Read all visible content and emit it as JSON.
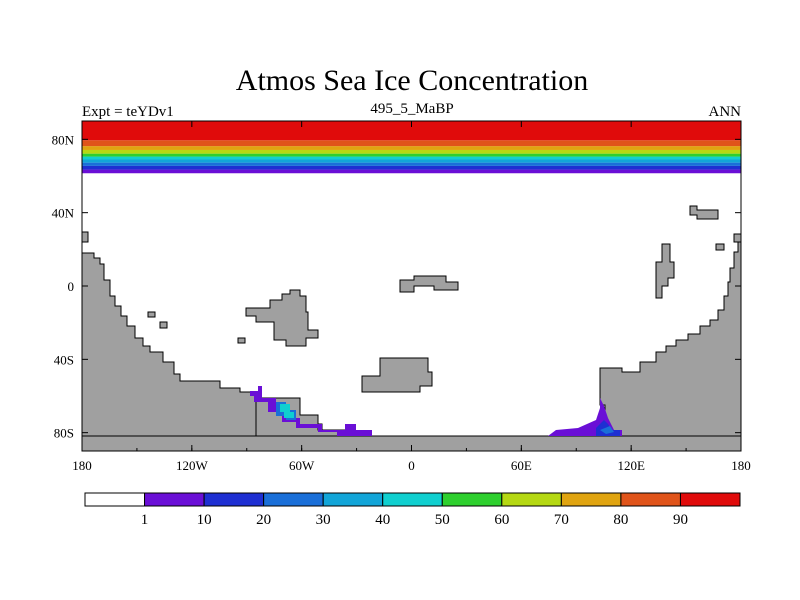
{
  "title": "Atmos Sea Ice Concentration",
  "subtitle": "495_5_MaBP",
  "left_label": "Expt = teYDv1",
  "right_label": "ANN",
  "colors": {
    "land": "#a0a0a0",
    "ocean": "#ffffff",
    "coast": "#000000",
    "bands": [
      "#ffffff",
      "#6a0fd6",
      "#1e2fd2",
      "#1a6fd8",
      "#12a5d8",
      "#10cfcf",
      "#2ecf2e",
      "#b5d813",
      "#e0a410",
      "#e0541a",
      "#e00b0b"
    ]
  },
  "chart_data": {
    "type": "heatmap",
    "title": "Atmos Sea Ice Concentration",
    "subtitle": "495_5_MaBP",
    "variable": "sea ice concentration",
    "units": "%",
    "x_ticks": [
      "180",
      "120W",
      "60W",
      "0",
      "60E",
      "120E",
      "180"
    ],
    "x_tick_lons": [
      -180,
      -120,
      -60,
      0,
      60,
      120,
      180
    ],
    "y_ticks": [
      "80N",
      "40N",
      "0",
      "40S",
      "80S"
    ],
    "y_tick_lats": [
      80,
      40,
      0,
      -40,
      -80
    ],
    "xlim": [
      -180,
      180
    ],
    "ylim": [
      -90,
      90
    ],
    "colorbar": {
      "levels": [
        "1",
        "10",
        "20",
        "30",
        "40",
        "50",
        "60",
        "70",
        "80",
        "90"
      ]
    },
    "ice_features": [
      {
        "region": "North polar cap",
        "lat_range": [
          63,
          90
        ],
        "conc_range": [
          1,
          100
        ]
      },
      {
        "region": "Antarctic margin near 60W",
        "lat_range": [
          -82,
          -58
        ],
        "conc_range": [
          1,
          40
        ]
      },
      {
        "region": "Antarctic margin near 90E-120E",
        "lat_range": [
          -82,
          -68
        ],
        "conc_range": [
          1,
          30
        ]
      }
    ]
  }
}
